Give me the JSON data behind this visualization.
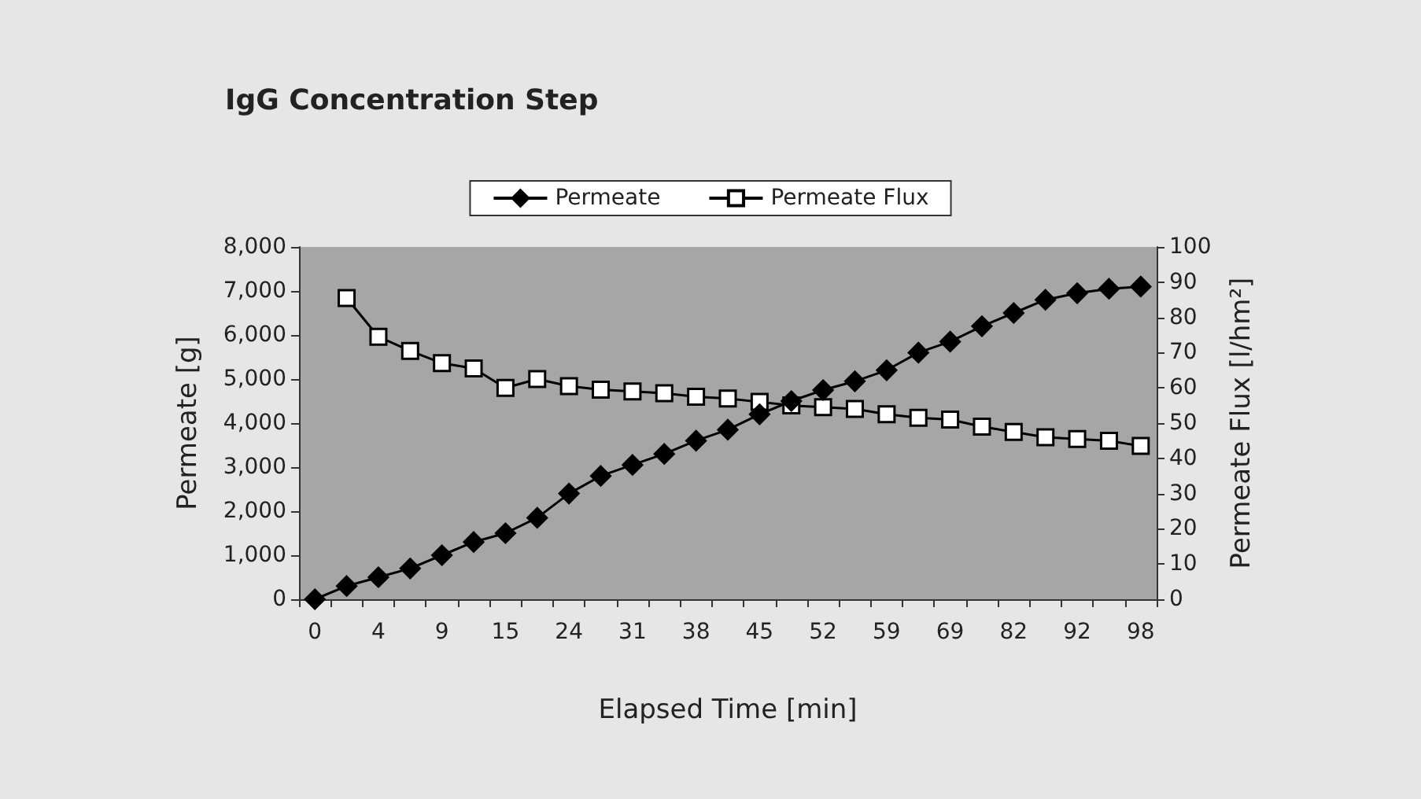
{
  "chart_data": {
    "type": "line",
    "title": "IgG Concentration Step",
    "xlabel": "Elapsed Time [min]",
    "ylabel": "Permeate [g]",
    "y2label": "Permeate Flux [l/hm²]",
    "categories": [
      "0",
      null,
      "4",
      null,
      "9",
      null,
      "15",
      null,
      "24",
      null,
      "31",
      null,
      "38",
      null,
      "45",
      null,
      "52",
      null,
      "59",
      null,
      "69",
      null,
      "82",
      null,
      "92",
      null,
      "98"
    ],
    "series": [
      {
        "name": "Permeate",
        "color": "#000000",
        "marker": "diamond",
        "values": [
          0,
          300,
          500,
          700,
          1000,
          1300,
          1500,
          1850,
          2400,
          2800,
          3050,
          3300,
          3600,
          3850,
          4200,
          4500,
          4750,
          4950,
          5200,
          5600,
          5850,
          6200,
          6500,
          6800,
          6950,
          7050,
          7100
        ]
      },
      {
        "name": "Permeate Flux",
        "color": "#000000",
        "marker": "square",
        "axis": "y2",
        "values": [
          null,
          85.5,
          74.5,
          70.5,
          67,
          65.5,
          60,
          62.5,
          60.5,
          59.5,
          59,
          58.5,
          57.5,
          57,
          56,
          55,
          54.5,
          54,
          52.5,
          51.5,
          51,
          49,
          47.5,
          46,
          45.5,
          45,
          43.5
        ]
      }
    ],
    "ylim": [
      0,
      8000
    ],
    "yticks": [
      0,
      {
        "value": 1000,
        "label": "1,000"
      },
      {
        "value": 2000,
        "label": "2,000"
      },
      {
        "value": 3000,
        "label": "3,000"
      },
      {
        "value": 4000,
        "label": "4,000"
      },
      {
        "value": 5000,
        "label": "5,000"
      },
      {
        "value": 6000,
        "label": "6,000"
      },
      {
        "value": 7000,
        "label": "7,000"
      },
      {
        "value": 8000,
        "label": "8,000"
      }
    ],
    "y2lim": [
      0,
      100
    ],
    "y2ticks": [
      0,
      10,
      20,
      30,
      40,
      50,
      60,
      70,
      80,
      90,
      100
    ],
    "grid": false,
    "legend": "top",
    "line_style": "solid"
  }
}
